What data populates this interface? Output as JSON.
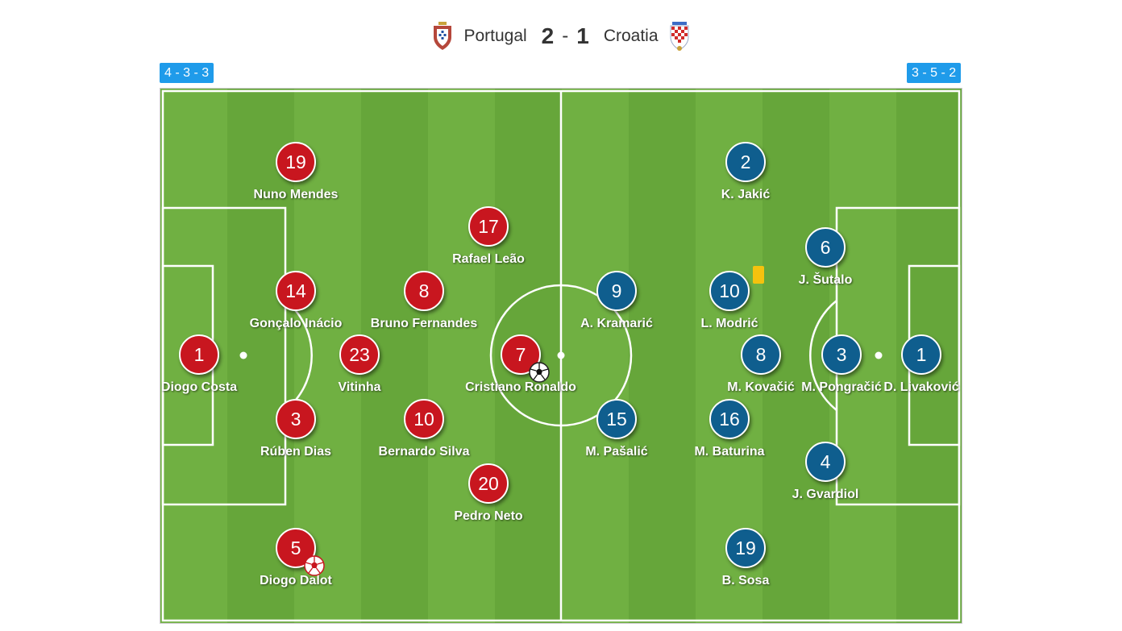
{
  "match": {
    "home_team": "Portugal",
    "home_score": "2",
    "separator": "-",
    "away_score": "1",
    "away_team": "Croatia",
    "home_formation": "4 - 3 - 3",
    "away_formation": "3 - 5 - 2"
  },
  "colors": {
    "home": "#c8161f",
    "away": "#0f5e8e",
    "pitch_light": "#70b042",
    "pitch_dark": "#66a63a",
    "formation_badge": "#1f9bea",
    "yellow_card": "#f5c20e"
  },
  "icons": {
    "home_crest": "portugal-crest-icon",
    "away_crest": "croatia-crest-icon",
    "goal": "football-icon",
    "card": "yellow-card-icon"
  },
  "home_players": [
    {
      "number": "19",
      "name": "Nuno Mendes"
    },
    {
      "number": "17",
      "name": "Rafael Leão"
    },
    {
      "number": "14",
      "name": "Gonçalo Inácio"
    },
    {
      "number": "8",
      "name": "Bruno Fernandes"
    },
    {
      "number": "1",
      "name": "Diogo Costa"
    },
    {
      "number": "23",
      "name": "Vitinha"
    },
    {
      "number": "7",
      "name": "Cristiano Ronaldo"
    },
    {
      "number": "3",
      "name": "Rúben Dias"
    },
    {
      "number": "10",
      "name": "Bernardo Silva"
    },
    {
      "number": "20",
      "name": "Pedro Neto"
    },
    {
      "number": "5",
      "name": "Diogo Dalot"
    }
  ],
  "away_players": [
    {
      "number": "2",
      "name": "K. Jakić"
    },
    {
      "number": "6",
      "name": "J. Šutalo"
    },
    {
      "number": "9",
      "name": "A. Kramarić"
    },
    {
      "number": "10",
      "name": "L. Modrić"
    },
    {
      "number": "8",
      "name": "M. Kovačić"
    },
    {
      "number": "3",
      "name": "M. Pongračić"
    },
    {
      "number": "1",
      "name": "D. Livaković"
    },
    {
      "number": "15",
      "name": "M. Pašalić"
    },
    {
      "number": "16",
      "name": "M. Baturina"
    },
    {
      "number": "4",
      "name": "J. Gvardiol"
    },
    {
      "number": "19",
      "name": "B. Sosa"
    }
  ]
}
